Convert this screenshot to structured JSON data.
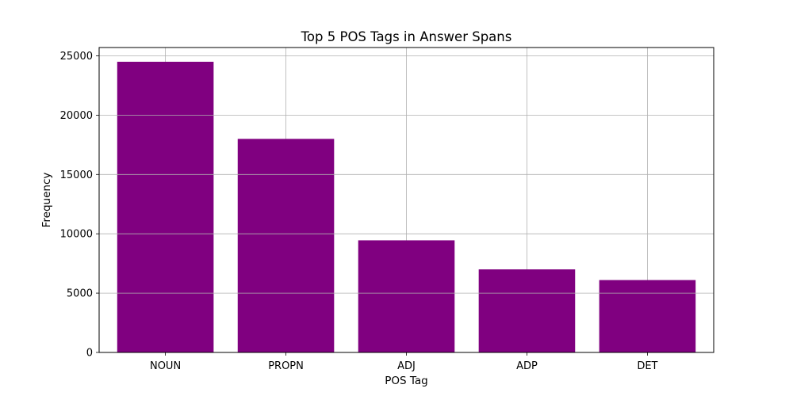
{
  "chart_data": {
    "type": "bar",
    "title": "Top 5 POS Tags in Answer Spans",
    "xlabel": "POS Tag",
    "ylabel": "Frequency",
    "categories": [
      "NOUN",
      "PROPN",
      "ADJ",
      "ADP",
      "DET"
    ],
    "values": [
      24500,
      18000,
      9450,
      7000,
      6100
    ],
    "ylim": [
      0,
      25700
    ],
    "yticks": [
      0,
      5000,
      10000,
      15000,
      20000,
      25000
    ],
    "ytick_labels": [
      "0",
      "5000",
      "10000",
      "15000",
      "20000",
      "25000"
    ],
    "grid": true,
    "bar_color": "#800080"
  }
}
